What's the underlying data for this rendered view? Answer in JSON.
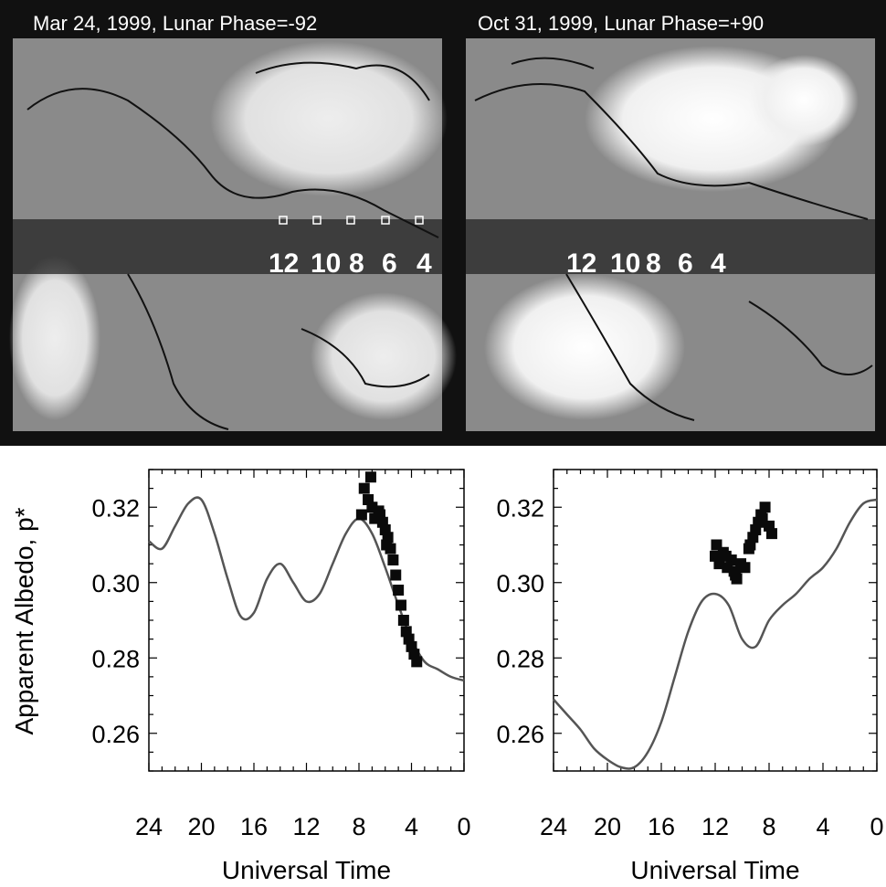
{
  "panels": [
    {
      "map_title": "Mar 24, 1999, Lunar Phase=-92",
      "hour_labels": [
        "12",
        "10",
        "8",
        "6",
        "4"
      ]
    },
    {
      "map_title": "Oct 31, 1999, Lunar Phase=+90",
      "hour_labels": [
        "12",
        "10",
        "8",
        "6",
        "4"
      ]
    }
  ],
  "chart_data": [
    {
      "type": "line",
      "title": "Mar 24, 1999, Lunar Phase=-92",
      "xlabel": "Universal Time",
      "ylabel": "Apparent Albedo, p*",
      "xlim": [
        24,
        0
      ],
      "ylim": [
        0.25,
        0.33
      ],
      "x_ticks": [
        24,
        20,
        16,
        12,
        8,
        4,
        0
      ],
      "x_tick_labels": [
        "24",
        "20",
        "16",
        "12",
        "8",
        "4",
        "0"
      ],
      "y_ticks": [
        0.26,
        0.28,
        0.3,
        0.32
      ],
      "y_tick_labels": [
        "0.26",
        "0.28",
        "0.30",
        "0.32"
      ],
      "series": [
        {
          "kind": "line",
          "x": [
            24,
            23,
            22,
            21,
            20,
            19,
            18,
            17,
            16,
            15,
            14,
            13,
            12,
            11,
            10,
            9,
            8,
            7,
            6,
            5,
            4,
            3,
            2,
            1,
            0
          ],
          "y": [
            0.311,
            0.309,
            0.315,
            0.321,
            0.322,
            0.313,
            0.301,
            0.291,
            0.292,
            0.301,
            0.305,
            0.3,
            0.295,
            0.297,
            0.305,
            0.313,
            0.317,
            0.313,
            0.304,
            0.294,
            0.285,
            0.279,
            0.277,
            0.275,
            0.274
          ]
        },
        {
          "kind": "scatter",
          "x": [
            7.6,
            7.3,
            7.0,
            6.8,
            6.5,
            6.2,
            6.0,
            5.8,
            5.6,
            5.4,
            5.2,
            5.0,
            4.8,
            4.6,
            4.4,
            4.2,
            4.0,
            3.8,
            3.6,
            7.8,
            7.1,
            6.4,
            5.9
          ],
          "y": [
            0.325,
            0.322,
            0.32,
            0.317,
            0.319,
            0.316,
            0.314,
            0.312,
            0.309,
            0.306,
            0.302,
            0.298,
            0.294,
            0.29,
            0.287,
            0.285,
            0.283,
            0.281,
            0.279,
            0.318,
            0.328,
            0.318,
            0.31
          ]
        }
      ],
      "grid": false
    },
    {
      "type": "line",
      "title": "Oct 31, 1999, Lunar Phase=+90",
      "xlabel": "Universal Time",
      "ylabel": "",
      "xlim": [
        24,
        0
      ],
      "ylim": [
        0.25,
        0.33
      ],
      "x_ticks": [
        24,
        20,
        16,
        12,
        8,
        4,
        0
      ],
      "x_tick_labels": [
        "24",
        "20",
        "16",
        "12",
        "8",
        "4",
        "0"
      ],
      "y_ticks": [
        0.26,
        0.28,
        0.3,
        0.32
      ],
      "y_tick_labels": [
        "0.26",
        "0.28",
        "0.30",
        "0.32"
      ],
      "series": [
        {
          "kind": "line",
          "x": [
            24,
            23,
            22,
            21,
            20,
            19,
            18,
            17,
            16,
            15,
            14,
            13,
            12,
            11,
            10,
            9,
            8,
            7,
            6,
            5,
            4,
            3,
            2,
            1,
            0
          ],
          "y": [
            0.269,
            0.265,
            0.261,
            0.256,
            0.253,
            0.251,
            0.251,
            0.255,
            0.263,
            0.275,
            0.287,
            0.295,
            0.297,
            0.294,
            0.285,
            0.283,
            0.29,
            0.294,
            0.297,
            0.301,
            0.304,
            0.309,
            0.316,
            0.321,
            0.322
          ]
        },
        {
          "kind": "scatter",
          "x": [
            12.0,
            11.7,
            11.4,
            11.1,
            10.8,
            10.6,
            10.4,
            10.1,
            9.8,
            9.5,
            9.2,
            9.0,
            8.8,
            8.5,
            8.3,
            8.0,
            7.8,
            11.9,
            11.2,
            10.5,
            9.4,
            8.6
          ],
          "y": [
            0.307,
            0.305,
            0.308,
            0.304,
            0.306,
            0.303,
            0.301,
            0.305,
            0.304,
            0.309,
            0.312,
            0.314,
            0.316,
            0.317,
            0.32,
            0.315,
            0.313,
            0.31,
            0.307,
            0.302,
            0.31,
            0.318
          ]
        }
      ],
      "grid": false
    }
  ]
}
